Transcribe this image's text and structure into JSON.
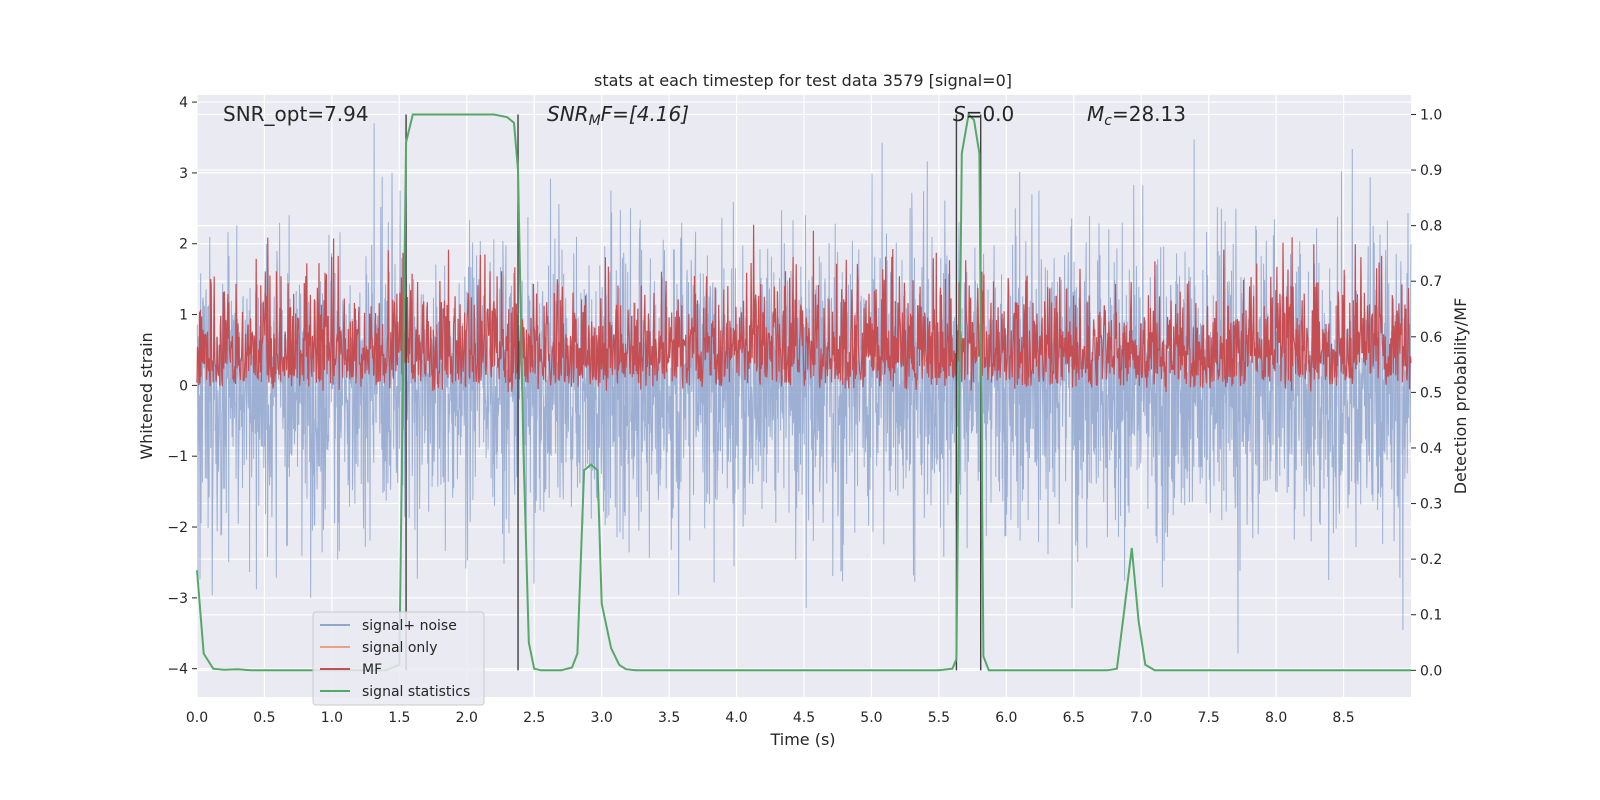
{
  "chart_data": {
    "type": "line",
    "title": "stats at each timestep for test data 3579 [signal=0]",
    "xlabel": "Time (s)",
    "ylabel_left": "Whitened strain",
    "ylabel_right": "Detection probability/MF",
    "xlim": [
      0.0,
      9.0
    ],
    "ylim_left": [
      -4.4,
      4.1
    ],
    "ylim_right": [
      -0.048,
      1.035
    ],
    "x_ticks": [
      "0.0",
      "0.5",
      "1.0",
      "1.5",
      "2.0",
      "2.5",
      "3.0",
      "3.5",
      "4.0",
      "4.5",
      "5.0",
      "5.5",
      "6.0",
      "6.5",
      "7.0",
      "7.5",
      "8.0",
      "8.5"
    ],
    "y_ticks_left": [
      "4",
      "3",
      "2",
      "1",
      "0",
      "−1",
      "−2",
      "−3",
      "−4"
    ],
    "y_ticks_right": [
      "1.0",
      "0.9",
      "0.8",
      "0.7",
      "0.6",
      "0.5",
      "0.4",
      "0.3",
      "0.2",
      "0.1",
      "0.0"
    ],
    "grid": true,
    "legend_position": "lower-left",
    "annotations": {
      "snr_opt": "SNR_opt=7.94",
      "snr_mf_base": "SNR",
      "snr_mf_sub": "M",
      "snr_mf_rest": "F=[4.16]",
      "s_base": "S",
      "s_rest": "=0.0",
      "mc_base": "M",
      "mc_sub": "c",
      "mc_rest": "=28.13"
    },
    "series": [
      {
        "name": "signal+ noise",
        "color": "#8fa6cf",
        "description_values": {
          "mean": 0.0,
          "approx_std": 1.0,
          "max": 3.7,
          "min": -3.9
        }
      },
      {
        "name": "signal only",
        "color": "#e9a181",
        "values": []
      },
      {
        "name": "MF",
        "color": "#c44e52",
        "description_values": {
          "mean": 0.3,
          "range": [
            0.0,
            1.0
          ]
        }
      },
      {
        "name": "signal statistics",
        "color": "#55a868",
        "x": [
          0.0,
          0.05,
          0.12,
          0.2,
          0.3,
          0.4,
          0.5,
          0.6,
          0.8,
          1.0,
          1.2,
          1.4,
          1.5,
          1.55,
          1.6,
          1.65,
          1.7,
          1.8,
          2.0,
          2.2,
          2.3,
          2.35,
          2.38,
          2.42,
          2.46,
          2.5,
          2.55,
          2.6,
          2.7,
          2.78,
          2.82,
          2.87,
          2.92,
          2.97,
          3.0,
          3.07,
          3.13,
          3.18,
          3.25,
          3.4,
          4.0,
          4.5,
          5.0,
          5.5,
          5.6,
          5.63,
          5.67,
          5.72,
          5.76,
          5.8,
          5.83,
          5.87,
          5.93,
          6.0,
          6.5,
          6.75,
          6.82,
          6.87,
          6.93,
          6.98,
          7.03,
          7.1,
          7.5,
          8.0,
          8.5,
          9.0
        ],
        "y": [
          0.18,
          0.03,
          0.003,
          0.001,
          0.002,
          0.0,
          0.0,
          0.0,
          0.0,
          0.0,
          0.0,
          0.0,
          0.01,
          0.95,
          1.0,
          1.0,
          1.0,
          1.0,
          1.0,
          1.0,
          0.995,
          0.985,
          0.9,
          0.4,
          0.05,
          0.003,
          0.0,
          0.0,
          0.0,
          0.005,
          0.03,
          0.36,
          0.37,
          0.36,
          0.12,
          0.04,
          0.01,
          0.002,
          0.0,
          0.0,
          0.0,
          0.0,
          0.0,
          0.0,
          0.003,
          0.02,
          0.93,
          1.0,
          0.99,
          0.93,
          0.025,
          0.0,
          0.0,
          0.0,
          0.0,
          0.0,
          0.003,
          0.1,
          0.22,
          0.09,
          0.01,
          0.0,
          0.0,
          0.0,
          0.0,
          0.0
        ]
      }
    ],
    "vertical_markers_x": [
      1.55,
      2.38,
      5.63,
      5.81
    ]
  },
  "colors": {
    "axes_background": "#eaeaf2",
    "grid": "#ffffff",
    "marker_line": "#404040"
  }
}
